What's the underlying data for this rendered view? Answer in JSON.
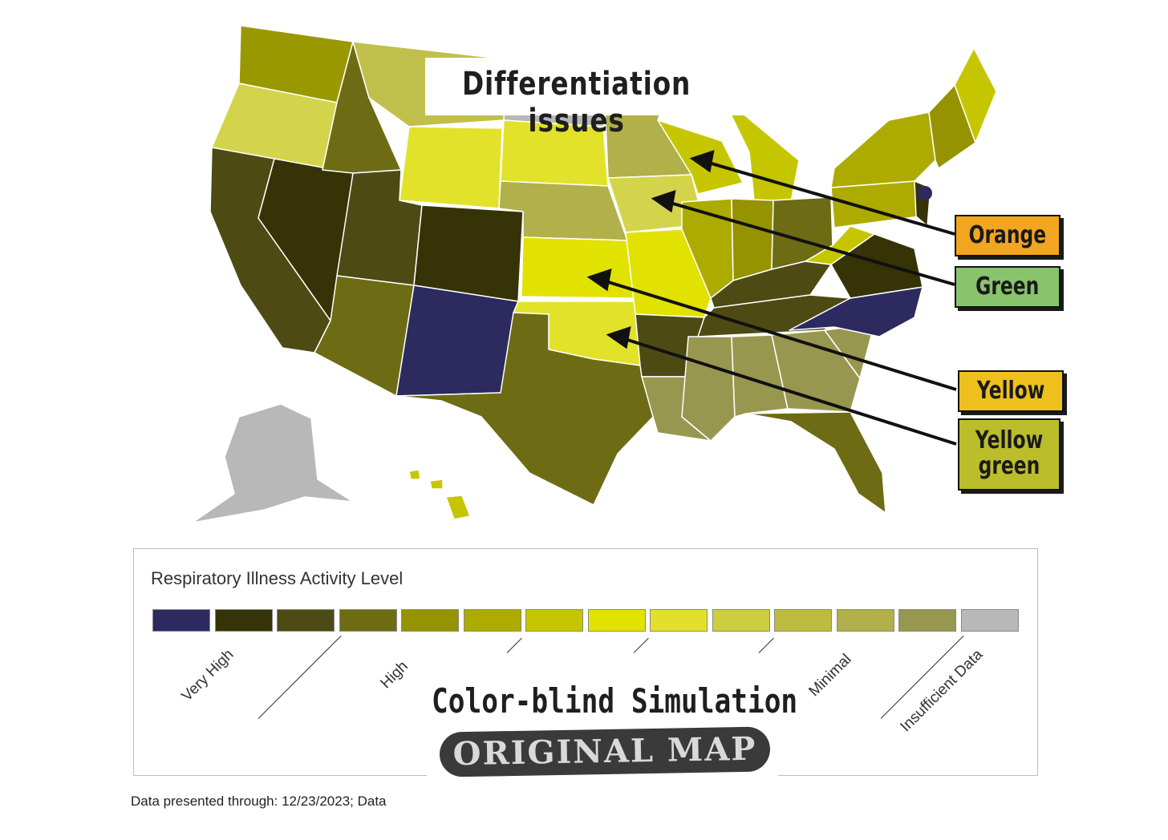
{
  "title": "Differentiation issues",
  "callouts": [
    {
      "label": "Orange",
      "color": "#f2a51e"
    },
    {
      "label": "Green",
      "color": "#88c46c"
    },
    {
      "label": "Yellow",
      "color": "#eec01d"
    },
    {
      "label": "Yellow green",
      "color": "#bcbd2a"
    }
  ],
  "legend": {
    "title": "Respiratory Illness Activity Level",
    "swatches": [
      "#2c2a5e",
      "#363306",
      "#4d4b13",
      "#6d6c14",
      "#959300",
      "#adab00",
      "#c6c600",
      "#e2e200",
      "#e2e02a",
      "#cdcd40",
      "#bdbc3f",
      "#b1b04a",
      "#989750",
      "#b8b8b8"
    ],
    "levels": [
      "Very High",
      "High",
      "Minimal",
      "Insufficient Data"
    ]
  },
  "footnote": "Data presented through: 12/23/2023; Data",
  "overlay": {
    "simulation": "Color-blind Simulation",
    "original": "ORIGINAL MAP"
  },
  "states": {
    "WA": "#9a9800",
    "OR": "#d4d44c",
    "CA": "#4d4b13",
    "NV": "#363306",
    "ID": "#6d6c14",
    "MT": "#c0bf4b",
    "WY": "#e2e22a",
    "UT": "#4d4b13",
    "AZ": "#6d6c14",
    "CO": "#363306",
    "NM": "#2c2a5e",
    "ND": "#b8b8b8",
    "SD": "#e2e22a",
    "NE": "#b1b04a",
    "KS": "#e2e200",
    "OK": "#e2e22a",
    "TX": "#6d6c14",
    "MN": "#b1b04a",
    "IA": "#d4d44c",
    "MO": "#e2e200",
    "AR": "#4d4b13",
    "LA": "#989750",
    "WI": "#c6c600",
    "IL": "#adab00",
    "MI": "#c6c600",
    "IN": "#959300",
    "OH": "#6d6c14",
    "KY": "#4d4b13",
    "TN": "#4d4b13",
    "MS": "#989750",
    "AL": "#989750",
    "GA": "#989750",
    "FL": "#6d6c14",
    "SC": "#989750",
    "NC": "#2c2a5e",
    "VA": "#363306",
    "WV": "#c6c600",
    "PA": "#adab00",
    "NY": "#adab00",
    "ME": "#c6c600",
    "NE_region": "#959300",
    "NJ": "#363306",
    "AK": "#b8b8b8",
    "HI": "#c6c600"
  }
}
